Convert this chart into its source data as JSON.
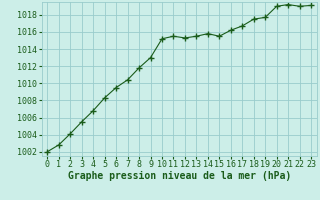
{
  "x": [
    0,
    1,
    2,
    3,
    4,
    5,
    6,
    7,
    8,
    9,
    10,
    11,
    12,
    13,
    14,
    15,
    16,
    17,
    18,
    19,
    20,
    21,
    22,
    23
  ],
  "y": [
    1002.0,
    1002.8,
    1004.1,
    1005.5,
    1006.8,
    1008.3,
    1009.5,
    1010.4,
    1011.8,
    1013.0,
    1015.2,
    1015.5,
    1015.3,
    1015.5,
    1015.8,
    1015.5,
    1016.2,
    1016.7,
    1017.5,
    1017.7,
    1019.0,
    1019.2,
    1019.0,
    1019.1
  ],
  "line_color": "#1a5c1a",
  "marker": "+",
  "marker_size": 4,
  "bg_color": "#cceee8",
  "grid_color": "#99cccc",
  "xlabel": "Graphe pression niveau de la mer (hPa)",
  "xlabel_color": "#1a5c1a",
  "xlabel_fontsize": 7,
  "tick_color": "#1a5c1a",
  "tick_fontsize": 6,
  "ylim": [
    1001.5,
    1019.5
  ],
  "yticks": [
    1002,
    1004,
    1006,
    1008,
    1010,
    1012,
    1014,
    1016,
    1018
  ],
  "xticks": [
    0,
    1,
    2,
    3,
    4,
    5,
    6,
    7,
    8,
    9,
    10,
    11,
    12,
    13,
    14,
    15,
    16,
    17,
    18,
    19,
    20,
    21,
    22,
    23
  ]
}
